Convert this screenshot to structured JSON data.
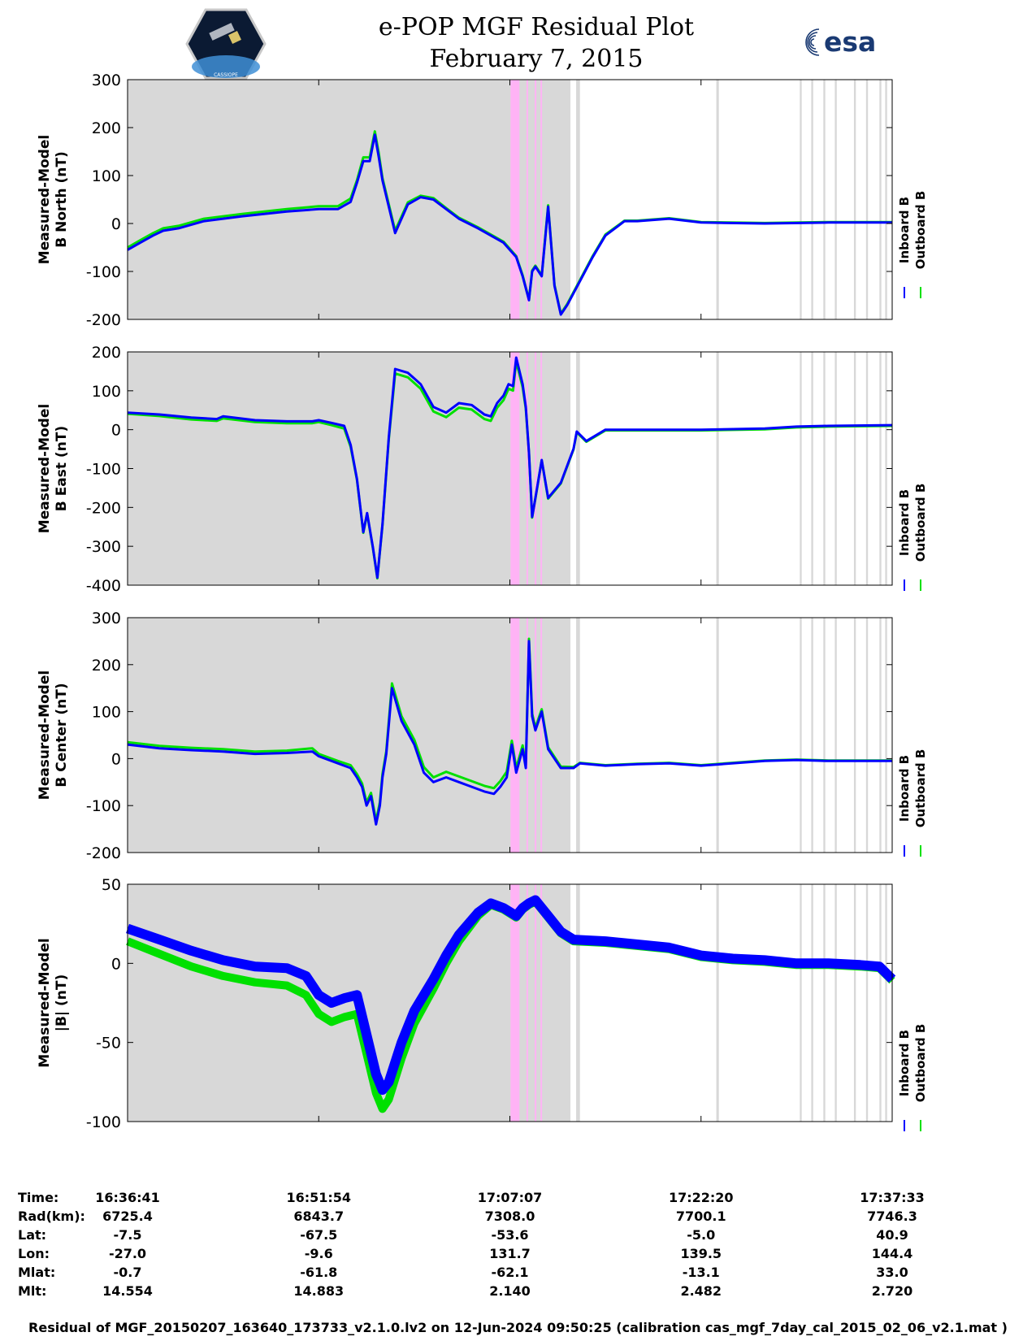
{
  "header": {
    "title": "e-POP MGF Residual Plot",
    "date": "February 7, 2015",
    "esa_logo_text": "esa",
    "cassiope_logo_text": "CASSIOPE"
  },
  "colors": {
    "inboard": "#0000ff",
    "outboard": "#00e000",
    "shade": "#d8d8d8",
    "highlight": "#ffb3f5"
  },
  "chart_data": [
    {
      "type": "line",
      "panel": "b-north",
      "ylabel_lines": [
        "Measured-Model",
        "B North (nT)"
      ],
      "ylim": [
        -200,
        300
      ],
      "yticks": [
        "300",
        "200",
        "100",
        "0",
        "-100",
        "-200"
      ],
      "legend": [
        "Inboard B",
        "Outboard B"
      ],
      "x": [
        0,
        2,
        4,
        5.6,
        8,
        12,
        18,
        25,
        30,
        33,
        35,
        36,
        37,
        38,
        38.8,
        39.4,
        40,
        42,
        44,
        46,
        48,
        50,
        52,
        55,
        59,
        61,
        62,
        63,
        63.5,
        64,
        65,
        66,
        67,
        68,
        69,
        71,
        73,
        75,
        78,
        80,
        85,
        90,
        100,
        110,
        120
      ],
      "series": [
        {
          "name": "Inboard B",
          "values": [
            -55,
            -40,
            -25,
            -15,
            -10,
            5,
            15,
            25,
            30,
            30,
            45,
            85,
            130,
            130,
            185,
            140,
            90,
            -20,
            40,
            55,
            50,
            30,
            10,
            -10,
            -40,
            -70,
            -110,
            -160,
            -100,
            -90,
            -110,
            35,
            -130,
            -190,
            -170,
            -120,
            -70,
            -25,
            5,
            5,
            10,
            2,
            0,
            2,
            2
          ]
        },
        {
          "name": "Outboard B",
          "values": [
            -50,
            -35,
            -20,
            -10,
            -5,
            10,
            20,
            30,
            36,
            36,
            52,
            90,
            138,
            138,
            192,
            148,
            95,
            -15,
            44,
            58,
            53,
            32,
            12,
            -8,
            -38,
            -68,
            -108,
            -158,
            -98,
            -88,
            -108,
            38,
            -128,
            -188,
            -168,
            -118,
            -68,
            -23,
            6,
            6,
            11,
            3,
            1,
            3,
            3
          ]
        }
      ]
    },
    {
      "type": "line",
      "panel": "b-east",
      "ylabel_lines": [
        "Measured-Model",
        "B East (nT)"
      ],
      "ylim": [
        -410,
        205
      ],
      "yticks": [
        "200",
        "100",
        "0",
        "-100",
        "-200",
        "-300",
        "-400"
      ],
      "legend": [
        "Inboard B",
        "Outboard B"
      ],
      "x": [
        0,
        5,
        10,
        14,
        15,
        20,
        25,
        29,
        30,
        32,
        34,
        35,
        36,
        37,
        37.6,
        38.5,
        39.2,
        40,
        41,
        42,
        44,
        46,
        48,
        50,
        52,
        54,
        56,
        57,
        58,
        59,
        59.8,
        60.5,
        61,
        62,
        62.5,
        63,
        63.5,
        64,
        65,
        66,
        68,
        70,
        70.5,
        72,
        75,
        80,
        90,
        100,
        105,
        110,
        120
      ],
      "series": [
        {
          "name": "Inboard B",
          "values": [
            45,
            40,
            32,
            28,
            35,
            25,
            22,
            22,
            25,
            18,
            10,
            -40,
            -130,
            -270,
            -220,
            -310,
            -390,
            -250,
            -20,
            160,
            150,
            120,
            60,
            45,
            70,
            65,
            40,
            35,
            70,
            90,
            120,
            115,
            190,
            120,
            60,
            -60,
            -230,
            -180,
            -80,
            -180,
            -140,
            -50,
            -5,
            -30,
            0,
            0,
            0,
            3,
            8,
            10,
            12
          ]
        },
        {
          "name": "Outboard B",
          "values": [
            42,
            36,
            27,
            23,
            30,
            20,
            17,
            17,
            20,
            12,
            3,
            -45,
            -132,
            -272,
            -222,
            -312,
            -392,
            -252,
            -25,
            148,
            138,
            108,
            48,
            33,
            58,
            53,
            28,
            23,
            58,
            78,
            108,
            103,
            180,
            112,
            55,
            -62,
            -232,
            -182,
            -82,
            -182,
            -142,
            -52,
            -7,
            -32,
            -2,
            -2,
            -2,
            1,
            6,
            8,
            10
          ]
        }
      ]
    },
    {
      "type": "line",
      "panel": "b-center",
      "ylabel_lines": [
        "Measured-Model",
        "B Center (nT)"
      ],
      "ylim": [
        -200,
        300
      ],
      "yticks": [
        "300",
        "200",
        "100",
        "0",
        "-100",
        "-200"
      ],
      "legend": [
        "Inboard B",
        "Outboard B"
      ],
      "x": [
        0,
        5,
        10,
        15,
        20,
        25,
        29,
        30,
        33,
        35,
        36,
        36.8,
        37.5,
        38.2,
        39,
        39.6,
        40,
        40.6,
        41.5,
        43,
        45,
        46.5,
        48,
        50,
        52,
        54,
        56,
        57.5,
        58.5,
        59.5,
        60.3,
        61,
        62,
        62.5,
        63,
        63.5,
        64,
        65,
        66,
        68,
        70,
        71,
        75,
        80,
        85,
        90,
        100,
        105,
        110,
        120
      ],
      "series": [
        {
          "name": "Inboard B",
          "values": [
            30,
            22,
            18,
            15,
            10,
            12,
            15,
            5,
            -10,
            -20,
            -40,
            -60,
            -100,
            -80,
            -140,
            -100,
            -40,
            10,
            150,
            80,
            30,
            -30,
            -50,
            -40,
            -50,
            -60,
            -70,
            -75,
            -60,
            -40,
            30,
            -30,
            20,
            -20,
            250,
            90,
            60,
            100,
            20,
            -20,
            -20,
            -10,
            -15,
            -12,
            -10,
            -15,
            -5,
            -3,
            -5,
            -5
          ]
        },
        {
          "name": "Outboard B",
          "values": [
            35,
            27,
            23,
            20,
            15,
            17,
            22,
            10,
            -5,
            -14,
            -33,
            -53,
            -93,
            -73,
            -133,
            -93,
            -33,
            16,
            160,
            90,
            40,
            -18,
            -40,
            -28,
            -38,
            -48,
            -58,
            -63,
            -48,
            -28,
            38,
            -20,
            28,
            -14,
            255,
            96,
            66,
            105,
            24,
            -17,
            -18,
            -9,
            -14,
            -11,
            -9,
            -14,
            -4,
            -2,
            -4,
            -4
          ]
        }
      ]
    },
    {
      "type": "line",
      "panel": "b-magnitude",
      "ylabel_lines": [
        "Measured-Model",
        "|B| (nT)"
      ],
      "ylim": [
        -100,
        50
      ],
      "yticks": [
        "50",
        "0",
        "-50",
        "-100"
      ],
      "legend": [
        "Inboard B",
        "Outboard B"
      ],
      "x": [
        0,
        5,
        10,
        15,
        20,
        25,
        28,
        30,
        32,
        34,
        36,
        37.5,
        39,
        40,
        41,
        43,
        45,
        48,
        50,
        52,
        55,
        57,
        59,
        61,
        62,
        63,
        64,
        66,
        68,
        70,
        75,
        80,
        85,
        90,
        95,
        100,
        105,
        110,
        115,
        118,
        120
      ],
      "series": [
        {
          "name": "Inboard B",
          "values": [
            22,
            15,
            8,
            2,
            -2,
            -3,
            -8,
            -20,
            -25,
            -22,
            -20,
            -45,
            -70,
            -80,
            -75,
            -50,
            -30,
            -10,
            5,
            18,
            32,
            38,
            35,
            30,
            35,
            38,
            40,
            30,
            20,
            15,
            14,
            12,
            10,
            5,
            3,
            2,
            0,
            0,
            -1,
            -2,
            -10
          ]
        },
        {
          "name": "Outboard B",
          "values": [
            14,
            6,
            -2,
            -8,
            -12,
            -14,
            -20,
            -32,
            -37,
            -34,
            -32,
            -57,
            -82,
            -92,
            -86,
            -60,
            -38,
            -16,
            0,
            14,
            30,
            37,
            34,
            29,
            34,
            37,
            39,
            29,
            19,
            14,
            13,
            11,
            9,
            4,
            2,
            1,
            -1,
            -1,
            -2,
            -3,
            -11
          ]
        }
      ]
    }
  ],
  "orbit": {
    "row_labels": [
      "Time:",
      "Rad(km):",
      "Lat:",
      "Lon:",
      "Mlat:",
      "Mlt:"
    ],
    "columns": [
      [
        "16:36:41",
        "6725.4",
        "-7.5",
        "-27.0",
        "-0.7",
        "14.554"
      ],
      [
        "16:51:54",
        "6843.7",
        "-67.5",
        "-9.6",
        "-61.8",
        "14.883"
      ],
      [
        "17:07:07",
        "7308.0",
        "-53.6",
        "131.7",
        "-62.1",
        "2.140"
      ],
      [
        "17:22:20",
        "7700.1",
        "-5.0",
        "139.5",
        "-13.1",
        "2.482"
      ],
      [
        "17:37:33",
        "7746.3",
        "40.9",
        "144.4",
        "33.0",
        "2.720"
      ]
    ]
  },
  "footer": "Residual of MGF_20150207_163640_173733_v2.1.0.lv2 on 12-Jun-2024 09:50:25 (calibration cas_mgf_7day_cal_2015_02_06_v2.1.mat )"
}
